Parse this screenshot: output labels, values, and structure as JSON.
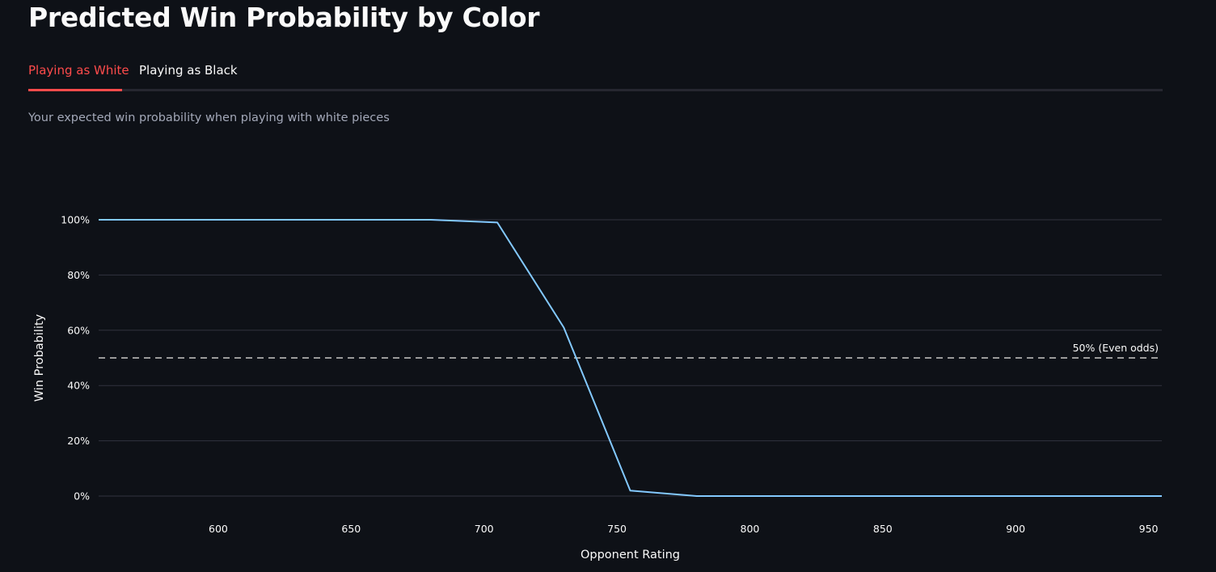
{
  "header": {
    "title": "Predicted Win Probability by Color"
  },
  "tabs": [
    {
      "label": "Playing as White",
      "active": true
    },
    {
      "label": "Playing as Black",
      "active": false
    }
  ],
  "caption": "Your expected win probability when playing with white pieces",
  "colors": {
    "background": "#0e1117",
    "accent": "#ff4b4b",
    "line": "#83c9ff",
    "reference_line": "#9a9a9a",
    "gridline": "#31333f"
  },
  "chart_data": {
    "type": "line",
    "title": "",
    "xlabel": "Opponent Rating",
    "ylabel": "Win Probability",
    "xlim": [
      555,
      955
    ],
    "ylim": [
      0,
      1
    ],
    "x_ticks": [
      600,
      650,
      700,
      750,
      800,
      850,
      900,
      950
    ],
    "y_ticks": [
      0,
      0.2,
      0.4,
      0.6,
      0.8,
      1.0
    ],
    "y_tick_labels": [
      "0%",
      "20%",
      "40%",
      "60%",
      "80%",
      "100%"
    ],
    "grid": "horizontal",
    "series": [
      {
        "x": [
          555,
          580,
          605,
          630,
          655,
          680,
          705,
          730,
          755,
          780,
          805,
          830,
          855,
          880,
          905,
          930,
          955
        ],
        "values": [
          1.0,
          1.0,
          1.0,
          1.0,
          1.0,
          1.0,
          0.99,
          0.61,
          0.02,
          0.0,
          0.0,
          0.0,
          0.0,
          0.0,
          0.0,
          0.0,
          0.0
        ]
      }
    ],
    "reference_line": {
      "y": 0.5,
      "label": "50% (Even odds)",
      "style": "dashed"
    }
  }
}
